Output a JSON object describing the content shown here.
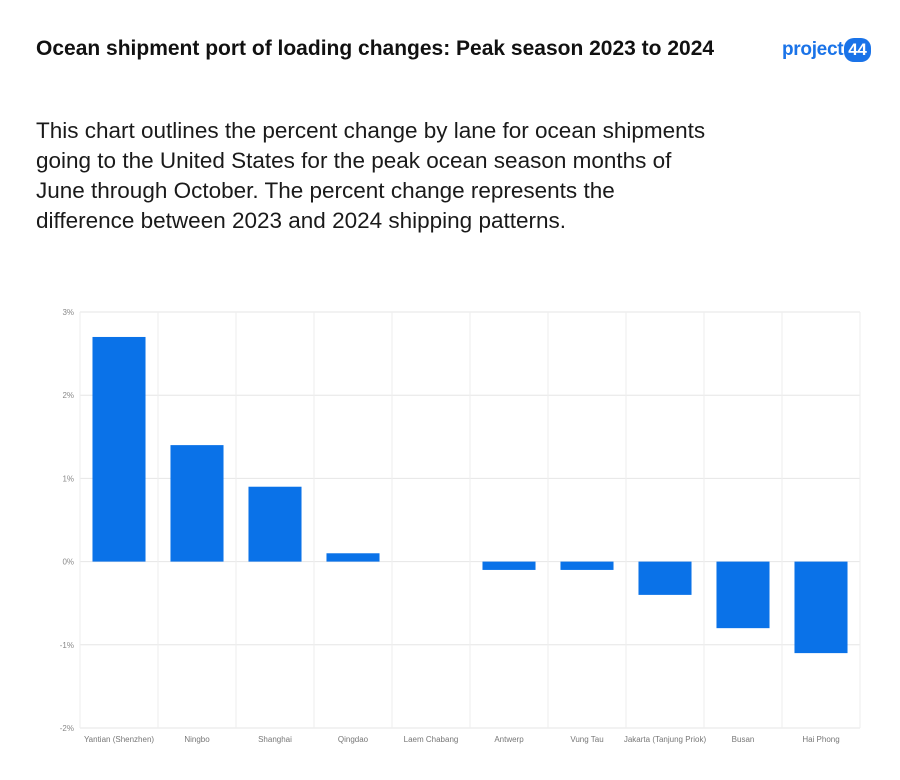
{
  "header": {
    "title": "Ocean shipment port of loading changes: Peak season 2023 to 2024",
    "description": "This chart outlines the percent change by lane for ocean shipments going to the United States for the peak ocean season months of June through October. The percent change represents the difference between 2023 and 2024 shipping patterns."
  },
  "logo": {
    "text": "project",
    "badge": "44",
    "color": "#1a73e8"
  },
  "chart_data": {
    "type": "bar",
    "categories": [
      "Yantian (Shenzhen)",
      "Ningbo",
      "Shanghai",
      "Qingdao",
      "Laem Chabang",
      "Antwerp",
      "Vung Tau",
      "Jakarta (Tanjung Priok)",
      "Busan",
      "Hai Phong"
    ],
    "values": [
      2.7,
      1.4,
      0.9,
      0.1,
      0.0,
      -0.1,
      -0.1,
      -0.4,
      -0.8,
      -1.1
    ],
    "unit": "%",
    "ylim": [
      -2,
      3
    ],
    "yticks": [
      3,
      2,
      1,
      0,
      -1,
      -2
    ],
    "ytick_labels": [
      "3%",
      "2%",
      "1%",
      "0%",
      "-1%",
      "-2%"
    ],
    "grid": true,
    "bar_color": "#0a72e8",
    "title": "",
    "xlabel": "",
    "ylabel": ""
  }
}
